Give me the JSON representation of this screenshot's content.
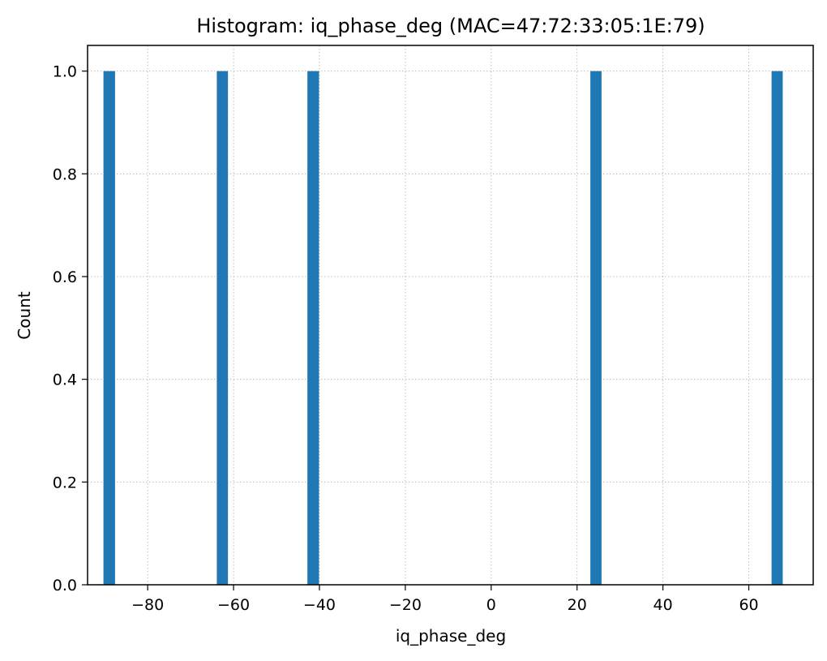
{
  "chart_data": {
    "type": "bar",
    "title": "Histogram: iq_phase_deg (MAC=47:72:33:05:1E:79)",
    "xlabel": "iq_phase_deg",
    "ylabel": "Count",
    "xlim": [
      -94.0,
      75.0
    ],
    "ylim": [
      0.0,
      1.05
    ],
    "xticks": [
      -80,
      -60,
      -40,
      -20,
      0,
      20,
      40,
      60
    ],
    "xtick_labels": [
      "−80",
      "−60",
      "−40",
      "−20",
      "0",
      "20",
      "40",
      "60"
    ],
    "yticks": [
      0.0,
      0.2,
      0.4,
      0.6,
      0.8,
      1.0
    ],
    "ytick_labels": [
      "0.0",
      "0.2",
      "0.4",
      "0.6",
      "0.8",
      "1.0"
    ],
    "grid": true,
    "bar_color": "#1f77b4",
    "bins": [
      {
        "x0": -90.3,
        "x1": -87.6,
        "count": 1
      },
      {
        "x0": -63.9,
        "x1": -61.3,
        "count": 1
      },
      {
        "x0": -42.8,
        "x1": -40.1,
        "count": 1
      },
      {
        "x0": 23.1,
        "x1": 25.7,
        "count": 1
      },
      {
        "x0": 65.3,
        "x1": 67.9,
        "count": 1
      }
    ]
  }
}
